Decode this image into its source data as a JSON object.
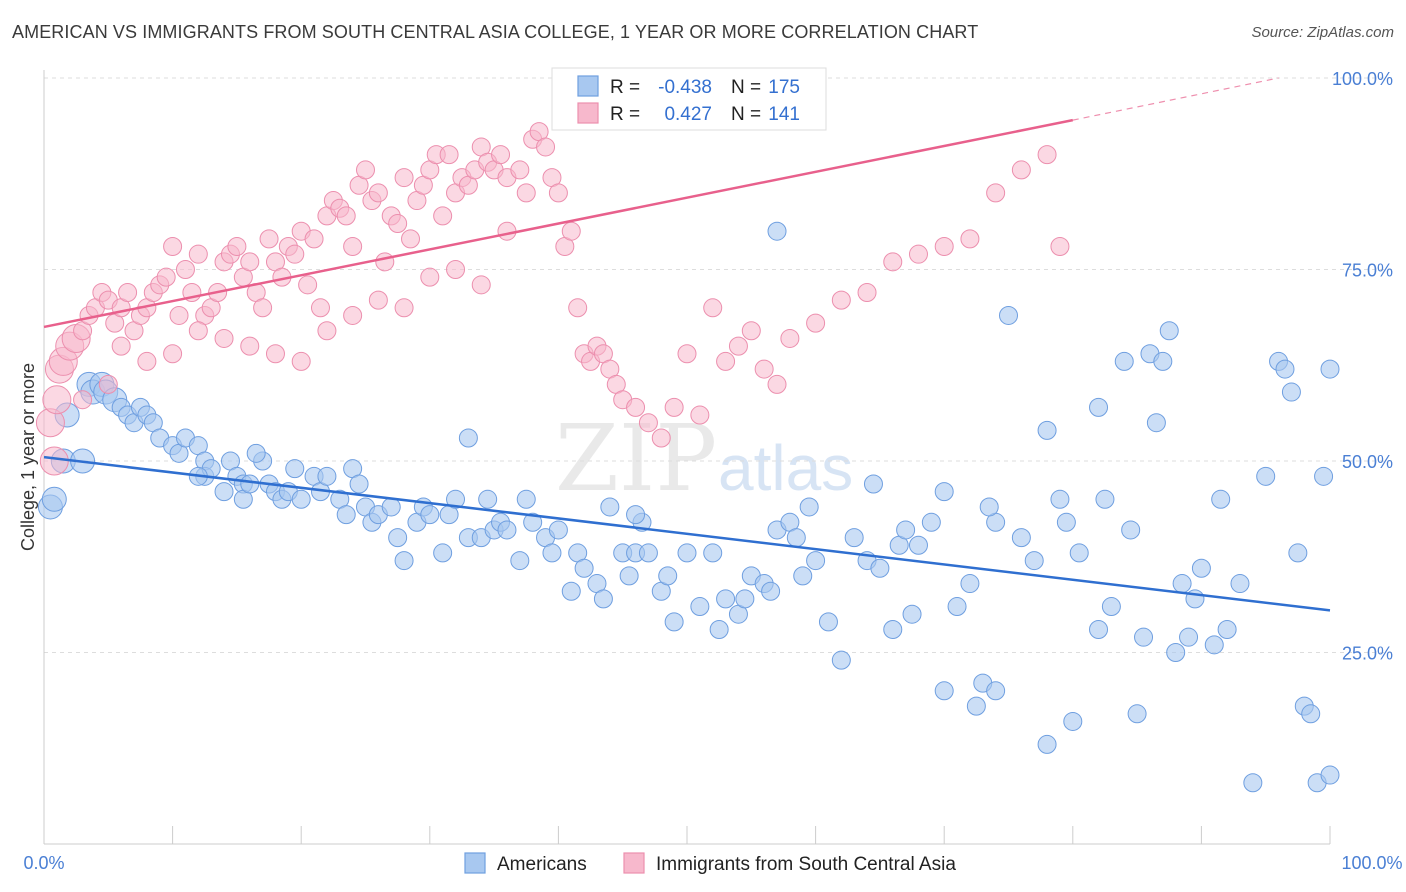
{
  "title": "AMERICAN VS IMMIGRANTS FROM SOUTH CENTRAL ASIA COLLEGE, 1 YEAR OR MORE CORRELATION CHART",
  "source": "Source: ZipAtlas.com",
  "watermark": {
    "zip": "ZIP",
    "atlas": "atlas"
  },
  "colors": {
    "americans_fill": "#a8c8f0",
    "americans_stroke": "#6f9fe0",
    "americans_line": "#2f6fd0",
    "immigrants_fill": "#f7b8cc",
    "immigrants_stroke": "#ec8fae",
    "immigrants_line": "#e8608c",
    "tick_text": "#4a7fd4",
    "grid": "#dddddd"
  },
  "legend": {
    "r_label": "R =",
    "n_label": "N =",
    "americans": {
      "r": "-0.438",
      "n": "175"
    },
    "immigrants": {
      "r": "0.427",
      "n": "141"
    }
  },
  "bottom_legend": {
    "americans": "Americans",
    "immigrants": "Immigrants from South Central Asia"
  },
  "chart_data": {
    "type": "scatter",
    "xlabel": "",
    "ylabel": "College, 1 year or more",
    "xlim": [
      0,
      100
    ],
    "ylim": [
      0,
      100
    ],
    "x_tick_labels": [
      "0.0%",
      "100.0%"
    ],
    "y_tick_labels": [
      "25.0%",
      "50.0%",
      "75.0%",
      "100.0%"
    ],
    "y_ticks": [
      25,
      50,
      75,
      100
    ],
    "grid": true,
    "legend_position": "top-center",
    "series": [
      {
        "name": "Americans",
        "trend": {
          "x": [
            0,
            100
          ],
          "y": [
            50.5,
            30.5
          ]
        },
        "points": [
          [
            0.5,
            44
          ],
          [
            0.8,
            45
          ],
          [
            1.5,
            50
          ],
          [
            1.8,
            56
          ],
          [
            3.5,
            60
          ],
          [
            3.8,
            59
          ],
          [
            4.5,
            60
          ],
          [
            4.8,
            59
          ],
          [
            5.5,
            58
          ],
          [
            6,
            57
          ],
          [
            6.5,
            56
          ],
          [
            7,
            55
          ],
          [
            7.5,
            57
          ],
          [
            8,
            56
          ],
          [
            8.5,
            55
          ],
          [
            9,
            53
          ],
          [
            10,
            52
          ],
          [
            10.5,
            51
          ],
          [
            11,
            53
          ],
          [
            12,
            52
          ],
          [
            12.5,
            50
          ],
          [
            12.5,
            48
          ],
          [
            13,
            49
          ],
          [
            14,
            46
          ],
          [
            14.5,
            50
          ],
          [
            15,
            48
          ],
          [
            15.5,
            47
          ],
          [
            15.5,
            45
          ],
          [
            16,
            47
          ],
          [
            17,
            50
          ],
          [
            17.5,
            47
          ],
          [
            18,
            46
          ],
          [
            18.5,
            45
          ],
          [
            19,
            46
          ],
          [
            19.5,
            49
          ],
          [
            20,
            45
          ],
          [
            21,
            48
          ],
          [
            21.5,
            46
          ],
          [
            22,
            48
          ],
          [
            23,
            45
          ],
          [
            23.5,
            43
          ],
          [
            24,
            49
          ],
          [
            25,
            44
          ],
          [
            25.5,
            42
          ],
          [
            26,
            43
          ],
          [
            27,
            44
          ],
          [
            27.5,
            40
          ],
          [
            28,
            37
          ],
          [
            29,
            42
          ],
          [
            29.5,
            44
          ],
          [
            30,
            43
          ],
          [
            31,
            38
          ],
          [
            31.5,
            43
          ],
          [
            32,
            45
          ],
          [
            33,
            53
          ],
          [
            33,
            40
          ],
          [
            34,
            40
          ],
          [
            35,
            41
          ],
          [
            35.5,
            42
          ],
          [
            36,
            41
          ],
          [
            37,
            37
          ],
          [
            37.5,
            45
          ],
          [
            38,
            42
          ],
          [
            39,
            40
          ],
          [
            39.5,
            38
          ],
          [
            40,
            41
          ],
          [
            41,
            33
          ],
          [
            41.5,
            38
          ],
          [
            42,
            36
          ],
          [
            43,
            34
          ],
          [
            43.5,
            32
          ],
          [
            44,
            44
          ],
          [
            45,
            38
          ],
          [
            45.5,
            35
          ],
          [
            46,
            38
          ],
          [
            46.5,
            42
          ],
          [
            47,
            38
          ],
          [
            48,
            33
          ],
          [
            48.5,
            35
          ],
          [
            49,
            29
          ],
          [
            50,
            38
          ],
          [
            51,
            31
          ],
          [
            52,
            38
          ],
          [
            52.5,
            28
          ],
          [
            53,
            32
          ],
          [
            54,
            30
          ],
          [
            54.5,
            32
          ],
          [
            55,
            35
          ],
          [
            56,
            34
          ],
          [
            56.5,
            33
          ],
          [
            57,
            41
          ],
          [
            58,
            42
          ],
          [
            58.5,
            40
          ],
          [
            59,
            35
          ],
          [
            60,
            37
          ],
          [
            61,
            29
          ],
          [
            62,
            24
          ],
          [
            63,
            40
          ],
          [
            64,
            37
          ],
          [
            64.5,
            47
          ],
          [
            65,
            36
          ],
          [
            66,
            28
          ],
          [
            66.5,
            39
          ],
          [
            67,
            41
          ],
          [
            67.5,
            30
          ],
          [
            68,
            39
          ],
          [
            69,
            42
          ],
          [
            70,
            20
          ],
          [
            70,
            46
          ],
          [
            71,
            31
          ],
          [
            72,
            34
          ],
          [
            72.5,
            18
          ],
          [
            73,
            21
          ],
          [
            74,
            20
          ],
          [
            74,
            42
          ],
          [
            75,
            69
          ],
          [
            76,
            40
          ],
          [
            77,
            37
          ],
          [
            78,
            13
          ],
          [
            78,
            54
          ],
          [
            79,
            45
          ],
          [
            79.5,
            42
          ],
          [
            80,
            16
          ],
          [
            80.5,
            38
          ],
          [
            82,
            28
          ],
          [
            82,
            57
          ],
          [
            82.5,
            45
          ],
          [
            83,
            31
          ],
          [
            84,
            63
          ],
          [
            84.5,
            41
          ],
          [
            85,
            17
          ],
          [
            85.5,
            27
          ],
          [
            86,
            64
          ],
          [
            86.5,
            55
          ],
          [
            87,
            63
          ],
          [
            87.5,
            67
          ],
          [
            88,
            25
          ],
          [
            88.5,
            34
          ],
          [
            89,
            27
          ],
          [
            89.5,
            32
          ],
          [
            90,
            36
          ],
          [
            91,
            26
          ],
          [
            91.5,
            45
          ],
          [
            92,
            28
          ],
          [
            93,
            34
          ],
          [
            94,
            8
          ],
          [
            95,
            48
          ],
          [
            96,
            63
          ],
          [
            96.5,
            62
          ],
          [
            97,
            59
          ],
          [
            97.5,
            38
          ],
          [
            98,
            18
          ],
          [
            98.5,
            17
          ],
          [
            99,
            8
          ],
          [
            99.5,
            48
          ],
          [
            100,
            9
          ],
          [
            100,
            62
          ],
          [
            57,
            80
          ],
          [
            12,
            48
          ],
          [
            3,
            50
          ],
          [
            16.5,
            51
          ],
          [
            24.5,
            47
          ],
          [
            34.5,
            45
          ],
          [
            46,
            43
          ],
          [
            59.5,
            44
          ],
          [
            73.5,
            44
          ]
        ]
      },
      {
        "name": "Immigrants from South Central Asia",
        "trend": {
          "x": [
            0,
            80
          ],
          "y": [
            67.5,
            94.5
          ]
        },
        "trend_extension": {
          "x": [
            80,
            96
          ],
          "y": [
            94.5,
            100
          ]
        },
        "points": [
          [
            0.5,
            55
          ],
          [
            0.8,
            50
          ],
          [
            1,
            58
          ],
          [
            1.2,
            62
          ],
          [
            1.5,
            63
          ],
          [
            2,
            65
          ],
          [
            2.5,
            66
          ],
          [
            3,
            67
          ],
          [
            3.5,
            69
          ],
          [
            4,
            70
          ],
          [
            4.5,
            72
          ],
          [
            5,
            71
          ],
          [
            5.5,
            68
          ],
          [
            6,
            70
          ],
          [
            6.5,
            72
          ],
          [
            7,
            67
          ],
          [
            7.5,
            69
          ],
          [
            8,
            70
          ],
          [
            8.5,
            72
          ],
          [
            9,
            73
          ],
          [
            9.5,
            74
          ],
          [
            10,
            78
          ],
          [
            10.5,
            69
          ],
          [
            11,
            75
          ],
          [
            11.5,
            72
          ],
          [
            12,
            77
          ],
          [
            12.5,
            69
          ],
          [
            13,
            70
          ],
          [
            13.5,
            72
          ],
          [
            14,
            76
          ],
          [
            14.5,
            77
          ],
          [
            15,
            78
          ],
          [
            15.5,
            74
          ],
          [
            16,
            76
          ],
          [
            16.5,
            72
          ],
          [
            17,
            70
          ],
          [
            17.5,
            79
          ],
          [
            18,
            76
          ],
          [
            18.5,
            74
          ],
          [
            19,
            78
          ],
          [
            19.5,
            77
          ],
          [
            20,
            80
          ],
          [
            20.5,
            73
          ],
          [
            21,
            79
          ],
          [
            21.5,
            70
          ],
          [
            22,
            82
          ],
          [
            22.5,
            84
          ],
          [
            23,
            83
          ],
          [
            23.5,
            82
          ],
          [
            24,
            78
          ],
          [
            24.5,
            86
          ],
          [
            25,
            88
          ],
          [
            25.5,
            84
          ],
          [
            26,
            85
          ],
          [
            26.5,
            76
          ],
          [
            27,
            82
          ],
          [
            27.5,
            81
          ],
          [
            28,
            87
          ],
          [
            28.5,
            79
          ],
          [
            29,
            84
          ],
          [
            29.5,
            86
          ],
          [
            30,
            88
          ],
          [
            30.5,
            90
          ],
          [
            31,
            82
          ],
          [
            31.5,
            90
          ],
          [
            32,
            85
          ],
          [
            32.5,
            87
          ],
          [
            33,
            86
          ],
          [
            33.5,
            88
          ],
          [
            34,
            91
          ],
          [
            34.5,
            89
          ],
          [
            35,
            88
          ],
          [
            35.5,
            90
          ],
          [
            36,
            87
          ],
          [
            37,
            88
          ],
          [
            37.5,
            85
          ],
          [
            38,
            92
          ],
          [
            38.5,
            93
          ],
          [
            39,
            91
          ],
          [
            39.5,
            87
          ],
          [
            40,
            85
          ],
          [
            40.5,
            78
          ],
          [
            41,
            80
          ],
          [
            41.5,
            70
          ],
          [
            42,
            64
          ],
          [
            42.5,
            63
          ],
          [
            43,
            65
          ],
          [
            43.5,
            64
          ],
          [
            44,
            62
          ],
          [
            44.5,
            60
          ],
          [
            45,
            58
          ],
          [
            46,
            57
          ],
          [
            47,
            55
          ],
          [
            48,
            53
          ],
          [
            49,
            57
          ],
          [
            50,
            64
          ],
          [
            51,
            56
          ],
          [
            52,
            70
          ],
          [
            53,
            63
          ],
          [
            54,
            65
          ],
          [
            55,
            67
          ],
          [
            56,
            62
          ],
          [
            57,
            60
          ],
          [
            58,
            66
          ],
          [
            60,
            68
          ],
          [
            62,
            71
          ],
          [
            64,
            72
          ],
          [
            66,
            76
          ],
          [
            68,
            77
          ],
          [
            70,
            78
          ],
          [
            72,
            79
          ],
          [
            74,
            85
          ],
          [
            76,
            88
          ],
          [
            78,
            90
          ],
          [
            79,
            78
          ],
          [
            6,
            65
          ],
          [
            8,
            63
          ],
          [
            10,
            64
          ],
          [
            12,
            67
          ],
          [
            14,
            66
          ],
          [
            16,
            65
          ],
          [
            18,
            64
          ],
          [
            20,
            63
          ],
          [
            22,
            67
          ],
          [
            24,
            69
          ],
          [
            26,
            71
          ],
          [
            28,
            70
          ],
          [
            30,
            74
          ],
          [
            32,
            75
          ],
          [
            34,
            73
          ],
          [
            36,
            80
          ],
          [
            3,
            58
          ],
          [
            5,
            60
          ]
        ]
      }
    ]
  }
}
